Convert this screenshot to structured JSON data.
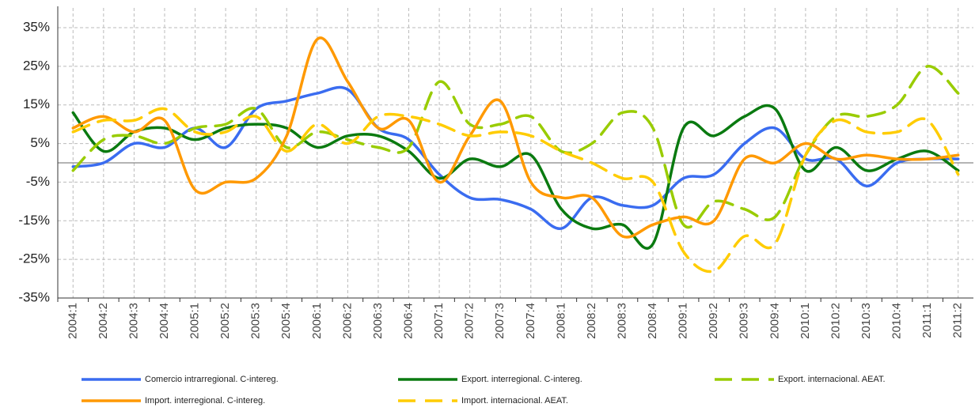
{
  "chart_data": {
    "type": "line",
    "categories": [
      "2004:1",
      "2004:2",
      "2004:3",
      "2004:4",
      "2005:1",
      "2005:2",
      "2005:3",
      "2005:4",
      "2006:1",
      "2006:2",
      "2006:3",
      "2006:4",
      "2007:1",
      "2007:2",
      "2007:3",
      "2007:4",
      "2008:1",
      "2008:2",
      "2008:3",
      "2008:4",
      "2009:1",
      "2009:2",
      "2009:3",
      "2009:4",
      "2010:1",
      "2010:2",
      "2010:3",
      "2010:4",
      "2011:1",
      "2011:2"
    ],
    "series": [
      {
        "name": "Comercio intrarregional. C-intereg.",
        "color": "#3a6cf0",
        "dashed": false,
        "values": [
          -1,
          0,
          5,
          4,
          9,
          4,
          14,
          16,
          18,
          19,
          9,
          6,
          -3,
          -9,
          -9.5,
          -12,
          -17,
          -9,
          -11,
          -11,
          -4,
          -3,
          5,
          9,
          1,
          1,
          -6,
          0,
          1,
          1
        ]
      },
      {
        "name": "Export. interregional. C-intereg.",
        "color": "#0a7a10",
        "dashed": false,
        "values": [
          13,
          3,
          8,
          9,
          6,
          9,
          10,
          9,
          4,
          7,
          7,
          3,
          -4,
          1,
          -1,
          2,
          -12,
          -17,
          -16,
          -21,
          9,
          7,
          12,
          14,
          -2,
          4,
          -2,
          1,
          3,
          -2
        ]
      },
      {
        "name": "Export. internacional. AEAT.",
        "color": "#99cc00",
        "dashed": true,
        "values": [
          -2,
          6,
          7,
          5,
          9,
          10,
          14,
          4,
          8,
          6,
          4,
          4,
          21,
          10,
          10,
          12,
          3,
          5,
          13,
          9,
          -16,
          -10,
          -12,
          -14,
          2,
          12,
          12,
          15,
          25,
          18
        ]
      },
      {
        "name": "Import. interregional. C-intereg.",
        "color": "#ff9900",
        "dashed": false,
        "values": [
          9,
          12,
          8,
          11,
          -7,
          -5,
          -4,
          7,
          32,
          21,
          9,
          11,
          -5,
          7,
          16,
          -5,
          -9,
          -9,
          -19,
          -16,
          -14,
          -15,
          1,
          0,
          5,
          1,
          2,
          1,
          1,
          2
        ]
      },
      {
        "name": "Import. internacional. AEAT.",
        "color": "#ffcc00",
        "dashed": true,
        "values": [
          8,
          11,
          11,
          14,
          8,
          8,
          12,
          3,
          10,
          5,
          12,
          12,
          10,
          7,
          8,
          7,
          3,
          0,
          -4,
          -5,
          -23,
          -28,
          -19,
          -21,
          2,
          11,
          8,
          8,
          11,
          -3
        ]
      }
    ],
    "ylim": [
      -35,
      35
    ],
    "yticks": [
      {
        "value": -35,
        "label": "-35%"
      },
      {
        "value": -25,
        "label": "-25%"
      },
      {
        "value": -15,
        "label": "-15%"
      },
      {
        "value": -5,
        "label": "-5%"
      },
      {
        "value": 5,
        "label": "5%"
      },
      {
        "value": 15,
        "label": "15%"
      },
      {
        "value": 25,
        "label": "25%"
      },
      {
        "value": 35,
        "label": "35%"
      }
    ],
    "grid": true
  }
}
